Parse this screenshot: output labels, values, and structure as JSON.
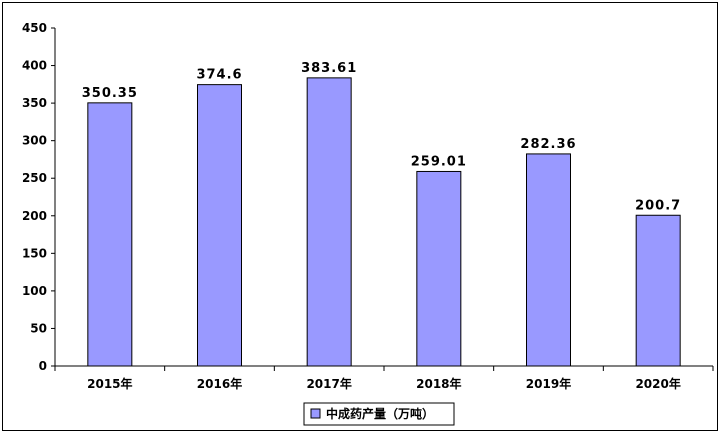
{
  "chart_data": {
    "type": "bar",
    "categories": [
      "2015年",
      "2016年",
      "2017年",
      "2018年",
      "2019年",
      "2020年"
    ],
    "series": [
      {
        "name": "中成药产量（万吨）",
        "values": [
          350.35,
          374.6,
          383.61,
          259.01,
          282.36,
          200.7
        ],
        "labels": [
          "350.35",
          "374.6",
          "383.61",
          "259.01",
          "282.36",
          "200.7"
        ],
        "color": "#9999ff"
      }
    ],
    "yticks": [
      "0",
      "50",
      "100",
      "150",
      "200",
      "250",
      "300",
      "350",
      "400",
      "450"
    ],
    "ylim": [
      0,
      450
    ],
    "grid": false,
    "legend_position": "bottom-center"
  }
}
